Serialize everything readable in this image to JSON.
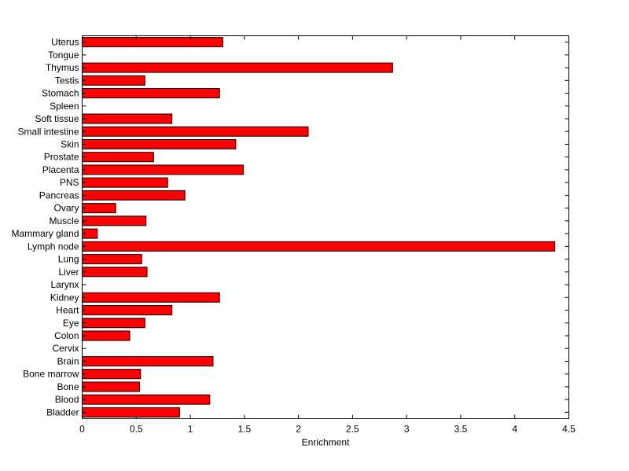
{
  "chart_data": {
    "type": "bar",
    "orientation": "horizontal",
    "categories": [
      "Uterus",
      "Tongue",
      "Thymus",
      "Testis",
      "Stomach",
      "Spleen",
      "Soft tissue",
      "Small intestine",
      "Skin",
      "Prostate",
      "Placenta",
      "PNS",
      "Pancreas",
      "Ovary",
      "Muscle",
      "Mammary gland",
      "Lymph node",
      "Lung",
      "Liver",
      "Larynx",
      "Kidney",
      "Heart",
      "Eye",
      "Colon",
      "Cervix",
      "Brain",
      "Bone marrow",
      "Bone",
      "Blood",
      "Bladder"
    ],
    "values": [
      1.3,
      0,
      2.87,
      0.58,
      1.27,
      0,
      0.83,
      2.09,
      1.42,
      0.66,
      1.49,
      0.79,
      0.95,
      0.31,
      0.59,
      0.14,
      4.37,
      0.55,
      0.6,
      0,
      1.27,
      0.83,
      0.58,
      0.44,
      0,
      1.21,
      0.54,
      0.53,
      1.18,
      0.9
    ],
    "xlabel": "Enrichment",
    "ylabel": "",
    "title": "",
    "xlim": [
      0,
      4.5
    ],
    "xticks": [
      "0",
      "0.5",
      "1",
      "1.5",
      "2",
      "2.5",
      "3",
      "3.5",
      "4",
      "4.5"
    ],
    "bar_color": "#ff0000",
    "grid": false
  }
}
